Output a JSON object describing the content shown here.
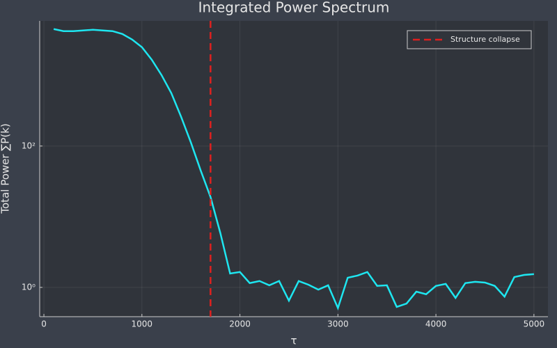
{
  "chart_data": {
    "type": "line",
    "title": "Integrated Power Spectrum",
    "xlabel": "τ",
    "ylabel": "Total Power ∑P(k)",
    "x": [
      100,
      200,
      300,
      400,
      500,
      600,
      700,
      800,
      900,
      1000,
      1100,
      1200,
      1300,
      1400,
      1500,
      1600,
      1700,
      1800,
      1900,
      2000,
      2100,
      2200,
      2300,
      2400,
      2500,
      2600,
      2700,
      2800,
      2900,
      3000,
      3100,
      3200,
      3300,
      3400,
      3500,
      3600,
      3700,
      3800,
      3900,
      4000,
      4100,
      4200,
      4300,
      4400,
      4500,
      4600,
      4700,
      4800,
      4900,
      5000
    ],
    "series": [
      {
        "color": "#1ee6f0",
        "values": [
          4520,
          4225,
          4225,
          4320,
          4420,
          4320,
          4225,
          3855,
          3215,
          2505,
          1668,
          1010,
          561,
          259,
          112,
          45,
          19,
          5.9,
          1.57,
          1.65,
          1.15,
          1.23,
          1.07,
          1.23,
          0.65,
          1.23,
          1.09,
          0.93,
          1.07,
          0.51,
          1.37,
          1.47,
          1.65,
          1.05,
          1.07,
          0.53,
          0.59,
          0.87,
          0.8,
          1.05,
          1.12,
          0.71,
          1.15,
          1.2,
          1.17,
          1.05,
          0.74,
          1.4,
          1.5,
          1.54
        ]
      }
    ],
    "vlines": [
      {
        "x": 1700,
        "label": "Structure collapse",
        "color": "#e0201f"
      }
    ],
    "xlim": [
      -43,
      5143
    ],
    "xticks": [
      0,
      1000,
      2000,
      3000,
      4000,
      5000
    ],
    "ylim": [
      0.385,
      5900
    ],
    "ylog": true,
    "yticks": [
      {
        "value": 1,
        "label": "10⁰"
      },
      {
        "value": 100,
        "label": "10²"
      }
    ],
    "grid": true,
    "legend": "top-right"
  }
}
